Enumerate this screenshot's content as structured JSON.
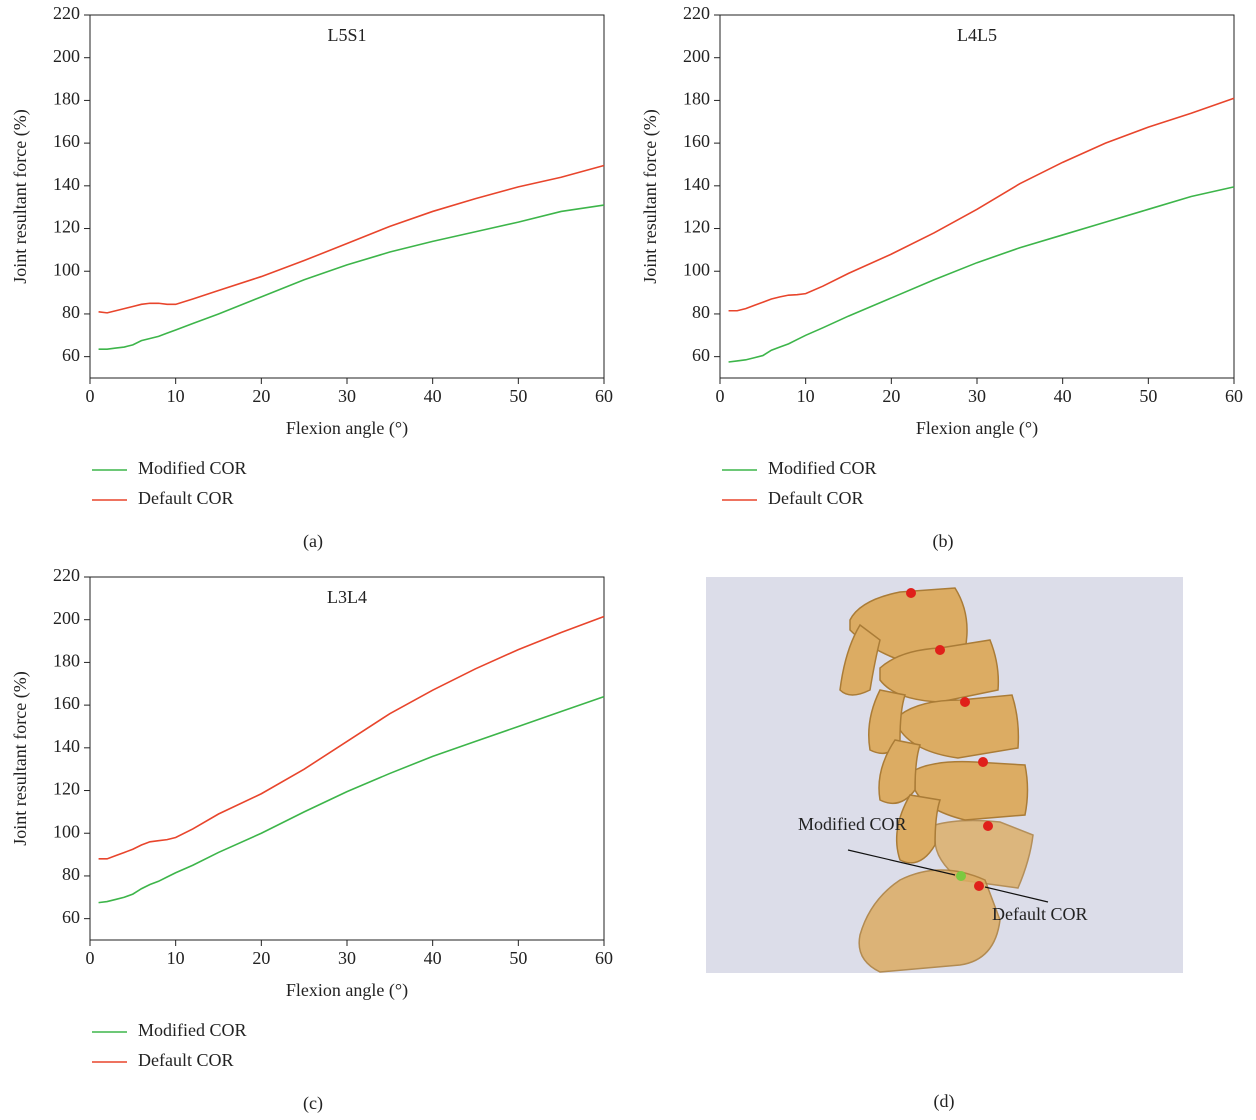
{
  "chart_data": [
    {
      "type": "line",
      "title": "L5S1",
      "caption": "(a)",
      "x_label": "Flexion angle (°)",
      "y_label": "Joint resultant force (%)",
      "x": [
        1,
        2,
        3,
        4,
        5,
        6,
        7,
        8,
        9,
        10,
        12,
        15,
        20,
        25,
        30,
        35,
        40,
        45,
        50,
        55,
        60
      ],
      "series": [
        {
          "name": "Modified COR",
          "color": "#3db54a",
          "values": [
            63.5,
            63.5,
            64,
            64.5,
            65.5,
            67.5,
            68.5,
            69.5,
            71,
            72.5,
            75.5,
            80,
            88,
            96,
            103,
            109,
            114,
            118.5,
            123,
            128,
            131
          ]
        },
        {
          "name": "Default COR",
          "color": "#e8452c",
          "values": [
            81,
            80.5,
            81.5,
            82.5,
            83.5,
            84.5,
            85,
            85,
            84.5,
            84.5,
            87,
            91,
            97.5,
            105,
            113,
            121,
            128,
            134,
            139.5,
            144,
            149.5
          ]
        }
      ],
      "xlim": [
        0,
        60
      ],
      "xticks": [
        0,
        10,
        20,
        30,
        40,
        50,
        60
      ],
      "ylim": [
        50,
        220
      ],
      "yticks": [
        60,
        80,
        100,
        120,
        140,
        160,
        180,
        200,
        220
      ],
      "legend": "below"
    },
    {
      "type": "line",
      "title": "L4L5",
      "caption": "(b)",
      "x_label": "Flexion angle (°)",
      "y_label": "Joint resultant force (%)",
      "x": [
        1,
        2,
        3,
        4,
        5,
        6,
        7,
        8,
        9,
        10,
        12,
        15,
        20,
        25,
        30,
        35,
        40,
        45,
        50,
        55,
        60
      ],
      "series": [
        {
          "name": "Modified COR",
          "color": "#3db54a",
          "values": [
            57.5,
            58,
            58.5,
            59.5,
            60.5,
            63,
            64.5,
            66,
            68,
            70,
            73.5,
            79,
            87.5,
            96,
            104,
            111,
            117,
            123,
            129,
            135,
            139.5
          ]
        },
        {
          "name": "Default COR",
          "color": "#e8452c",
          "values": [
            81.5,
            81.5,
            82.5,
            84,
            85.5,
            87,
            88,
            88.8,
            89,
            89.5,
            93,
            99,
            108,
            118,
            129,
            141,
            151,
            160,
            167.5,
            174,
            181
          ]
        }
      ],
      "xlim": [
        0,
        60
      ],
      "xticks": [
        0,
        10,
        20,
        30,
        40,
        50,
        60
      ],
      "ylim": [
        50,
        220
      ],
      "yticks": [
        60,
        80,
        100,
        120,
        140,
        160,
        180,
        200,
        220
      ],
      "legend": "below"
    },
    {
      "type": "line",
      "title": "L3L4",
      "caption": "(c)",
      "x_label": "Flexion angle (°)",
      "y_label": "Joint resultant force (%)",
      "x": [
        1,
        2,
        3,
        4,
        5,
        6,
        7,
        8,
        9,
        10,
        12,
        15,
        20,
        25,
        30,
        35,
        40,
        45,
        50,
        55,
        60
      ],
      "series": [
        {
          "name": "Modified COR",
          "color": "#3db54a",
          "values": [
            67.5,
            68,
            69,
            70,
            71.5,
            74,
            76,
            77.5,
            79.5,
            81.5,
            85,
            91,
            100,
            110,
            119.5,
            128,
            136,
            143,
            150,
            157,
            164
          ]
        },
        {
          "name": "Default COR",
          "color": "#e8452c",
          "values": [
            88,
            88,
            89.5,
            91,
            92.5,
            94.5,
            96,
            96.5,
            97,
            98,
            102,
            109,
            118.5,
            130,
            143,
            156,
            167,
            177,
            186,
            194,
            201.5
          ]
        }
      ],
      "xlim": [
        0,
        60
      ],
      "xticks": [
        0,
        10,
        20,
        30,
        40,
        50,
        60
      ],
      "ylim": [
        50,
        220
      ],
      "yticks": [
        60,
        80,
        100,
        120,
        140,
        160,
        180,
        200,
        220
      ],
      "legend": "below"
    }
  ],
  "image_panel": {
    "caption": "(d)",
    "annotations": [
      "Modified COR",
      "Default COR"
    ]
  }
}
